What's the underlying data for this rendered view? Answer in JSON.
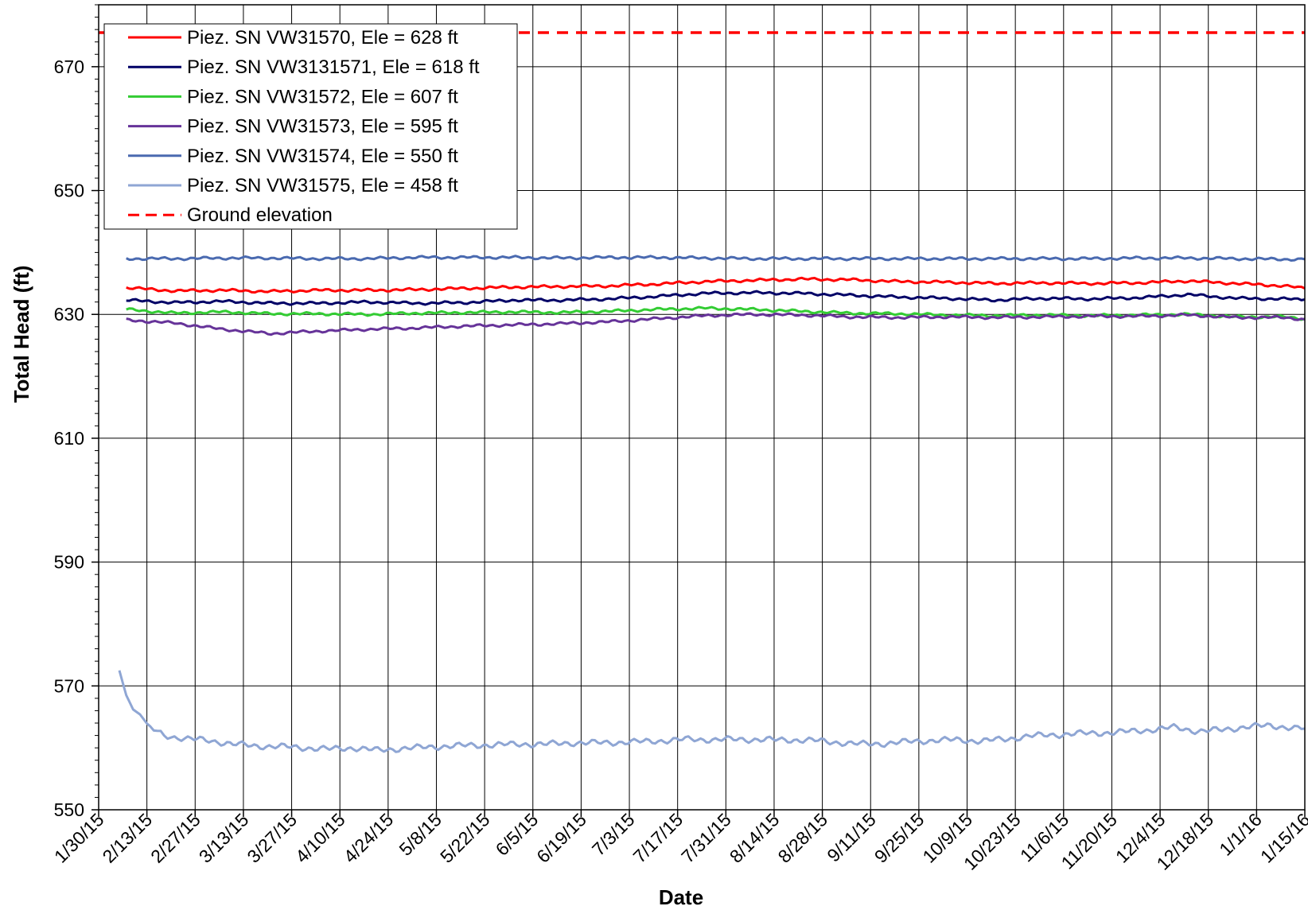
{
  "chart_data": {
    "type": "line",
    "title": "",
    "xlabel": "Date",
    "ylabel": "Total Head (ft)",
    "ylim": [
      550,
      680
    ],
    "yticks": [
      550,
      570,
      590,
      610,
      630,
      650,
      670
    ],
    "xlim": [
      "2015-01-30",
      "2016-01-15"
    ],
    "xtick_labels": [
      "1/30/15",
      "2/13/15",
      "2/27/15",
      "3/13/15",
      "3/27/15",
      "4/10/15",
      "4/24/15",
      "5/8/15",
      "5/22/15",
      "6/5/15",
      "6/19/15",
      "7/3/15",
      "7/17/15",
      "7/31/15",
      "8/14/15",
      "8/28/15",
      "9/11/15",
      "9/25/15",
      "10/9/15",
      "10/23/15",
      "11/6/15",
      "11/20/15",
      "12/4/15",
      "12/18/15",
      "1/1/16",
      "1/15/16"
    ],
    "grid": true,
    "legend_position": "top-left",
    "series": [
      {
        "name": "Piez. SN VW31570, Ele = 628 ft",
        "color": "#ff0000",
        "style": "solid",
        "x": [
          "2015-02-07",
          "2015-02-21",
          "2015-03-07",
          "2015-03-21",
          "2015-04-04",
          "2015-04-18",
          "2015-05-02",
          "2015-05-16",
          "2015-05-30",
          "2015-06-13",
          "2015-06-27",
          "2015-07-11",
          "2015-07-25",
          "2015-08-08",
          "2015-08-22",
          "2015-09-05",
          "2015-09-19",
          "2015-10-03",
          "2015-10-17",
          "2015-10-31",
          "2015-11-14",
          "2015-11-28",
          "2015-12-12",
          "2015-12-26",
          "2016-01-09",
          "2016-01-15"
        ],
        "y": [
          634.3,
          633.8,
          633.9,
          633.7,
          633.9,
          633.9,
          634.0,
          634.2,
          634.4,
          634.5,
          634.6,
          634.9,
          635.3,
          635.5,
          635.7,
          635.6,
          635.3,
          635.2,
          635.0,
          635.1,
          635.0,
          635.1,
          635.4,
          635.0,
          634.6,
          634.2
        ]
      },
      {
        "name": "Piez. SN VW3131571, Ele = 618 ft",
        "color": "#000066",
        "style": "solid",
        "x": [
          "2015-02-07",
          "2015-02-21",
          "2015-03-07",
          "2015-03-21",
          "2015-04-04",
          "2015-04-18",
          "2015-05-02",
          "2015-05-16",
          "2015-05-30",
          "2015-06-13",
          "2015-06-27",
          "2015-07-11",
          "2015-07-25",
          "2015-08-08",
          "2015-08-22",
          "2015-09-05",
          "2015-09-19",
          "2015-10-03",
          "2015-10-17",
          "2015-10-31",
          "2015-11-14",
          "2015-11-28",
          "2015-12-12",
          "2015-12-26",
          "2016-01-09",
          "2016-01-15"
        ],
        "y": [
          632.3,
          631.9,
          632.1,
          631.8,
          631.8,
          632.0,
          631.8,
          631.9,
          632.3,
          632.3,
          632.5,
          632.9,
          633.4,
          633.5,
          633.4,
          633.1,
          632.8,
          632.6,
          632.3,
          632.6,
          632.5,
          632.7,
          633.2,
          632.6,
          632.5,
          632.4
        ]
      },
      {
        "name": "Piez. SN VW31572, Ele = 607 ft",
        "color": "#33cc33",
        "style": "solid",
        "x": [
          "2015-02-07",
          "2015-02-21",
          "2015-03-07",
          "2015-03-21",
          "2015-04-04",
          "2015-04-18",
          "2015-05-02",
          "2015-05-16",
          "2015-05-30",
          "2015-06-13",
          "2015-06-27",
          "2015-07-11",
          "2015-07-25",
          "2015-08-08",
          "2015-08-22",
          "2015-09-05",
          "2015-09-19",
          "2015-10-03",
          "2015-10-17",
          "2015-10-31",
          "2015-11-14",
          "2015-11-28",
          "2015-12-12",
          "2015-12-26",
          "2016-01-09",
          "2016-01-15"
        ],
        "y": [
          630.8,
          630.2,
          630.4,
          630.1,
          630.1,
          630.0,
          630.2,
          630.3,
          630.4,
          630.3,
          630.5,
          630.8,
          631.0,
          630.8,
          630.5,
          630.2,
          630.1,
          629.9,
          629.8,
          629.9,
          629.8,
          629.9,
          630.0,
          629.6,
          629.6,
          629.3
        ]
      },
      {
        "name": "Piez. SN VW31573, Ele = 595 ft",
        "color": "#663399",
        "style": "solid",
        "x": [
          "2015-02-07",
          "2015-02-21",
          "2015-03-07",
          "2015-03-21",
          "2015-04-04",
          "2015-04-18",
          "2015-05-02",
          "2015-05-16",
          "2015-05-30",
          "2015-06-13",
          "2015-06-27",
          "2015-07-11",
          "2015-07-25",
          "2015-08-08",
          "2015-08-22",
          "2015-09-05",
          "2015-09-19",
          "2015-10-03",
          "2015-10-17",
          "2015-10-31",
          "2015-11-14",
          "2015-11-28",
          "2015-12-12",
          "2015-12-26",
          "2016-01-09",
          "2016-01-15"
        ],
        "y": [
          629.1,
          628.6,
          627.6,
          626.9,
          627.3,
          627.6,
          627.8,
          628.1,
          628.3,
          628.5,
          628.8,
          629.3,
          629.8,
          630.0,
          629.9,
          629.6,
          629.5,
          629.6,
          629.5,
          629.6,
          629.7,
          629.7,
          629.9,
          629.5,
          629.5,
          629.2
        ]
      },
      {
        "name": "Piez. SN VW31574, Ele = 550 ft",
        "color": "#4a6ab0",
        "style": "solid",
        "x": [
          "2015-02-07",
          "2015-02-21",
          "2015-03-07",
          "2015-03-21",
          "2015-04-04",
          "2015-04-18",
          "2015-05-02",
          "2015-05-16",
          "2015-05-30",
          "2015-06-13",
          "2015-06-27",
          "2015-07-11",
          "2015-07-25",
          "2015-08-08",
          "2015-08-22",
          "2015-09-05",
          "2015-09-19",
          "2015-10-03",
          "2015-10-17",
          "2015-10-31",
          "2015-11-14",
          "2015-11-28",
          "2015-12-12",
          "2015-12-26",
          "2016-01-09",
          "2016-01-15"
        ],
        "y": [
          639.0,
          639.0,
          639.1,
          639.1,
          639.0,
          639.0,
          639.2,
          639.2,
          639.2,
          639.1,
          639.2,
          639.2,
          639.1,
          639.0,
          639.0,
          639.0,
          639.0,
          639.0,
          639.0,
          639.0,
          639.0,
          639.1,
          639.1,
          639.0,
          638.9,
          638.9
        ]
      },
      {
        "name": "Piez. SN VW31575, Ele = 458 ft",
        "color": "#8fa6d4",
        "style": "solid",
        "x": [
          "2015-02-05",
          "2015-02-07",
          "2015-02-09",
          "2015-02-11",
          "2015-02-14",
          "2015-02-18",
          "2015-02-24",
          "2015-03-03",
          "2015-03-10",
          "2015-03-17",
          "2015-03-24",
          "2015-03-31",
          "2015-04-07",
          "2015-04-14",
          "2015-04-21",
          "2015-04-28",
          "2015-05-05",
          "2015-05-12",
          "2015-05-19",
          "2015-05-26",
          "2015-06-02",
          "2015-06-09",
          "2015-06-16",
          "2015-06-23",
          "2015-06-30",
          "2015-07-07",
          "2015-07-14",
          "2015-07-21",
          "2015-07-28",
          "2015-08-04",
          "2015-08-11",
          "2015-08-18",
          "2015-08-25",
          "2015-09-01",
          "2015-09-08",
          "2015-09-15",
          "2015-09-22",
          "2015-09-29",
          "2015-10-06",
          "2015-10-13",
          "2015-10-20",
          "2015-10-27",
          "2015-11-03",
          "2015-11-10",
          "2015-11-17",
          "2015-11-24",
          "2015-12-01",
          "2015-12-08",
          "2015-12-15",
          "2015-12-22",
          "2015-12-29",
          "2016-01-05",
          "2016-01-12",
          "2016-01-15"
        ],
        "y": [
          572.5,
          568.5,
          566.2,
          565.4,
          563.2,
          562.0,
          561.5,
          561.2,
          560.6,
          560.3,
          560.2,
          560.0,
          559.8,
          560.0,
          559.6,
          559.9,
          560.1,
          560.3,
          560.4,
          560.5,
          560.6,
          560.6,
          560.8,
          560.8,
          560.9,
          561.0,
          561.2,
          561.4,
          561.3,
          561.4,
          561.3,
          561.3,
          561.2,
          560.9,
          560.6,
          560.7,
          561.0,
          561.2,
          561.3,
          561.1,
          561.4,
          561.9,
          562.1,
          562.3,
          562.4,
          562.6,
          562.9,
          563.3,
          562.7,
          562.9,
          563.4,
          563.6,
          563.2,
          563.1
        ]
      },
      {
        "name": "Ground elevation",
        "color": "#ff0000",
        "style": "dashed",
        "x": [
          "2015-01-30",
          "2016-01-15"
        ],
        "y": [
          675.5,
          675.5
        ]
      }
    ]
  }
}
